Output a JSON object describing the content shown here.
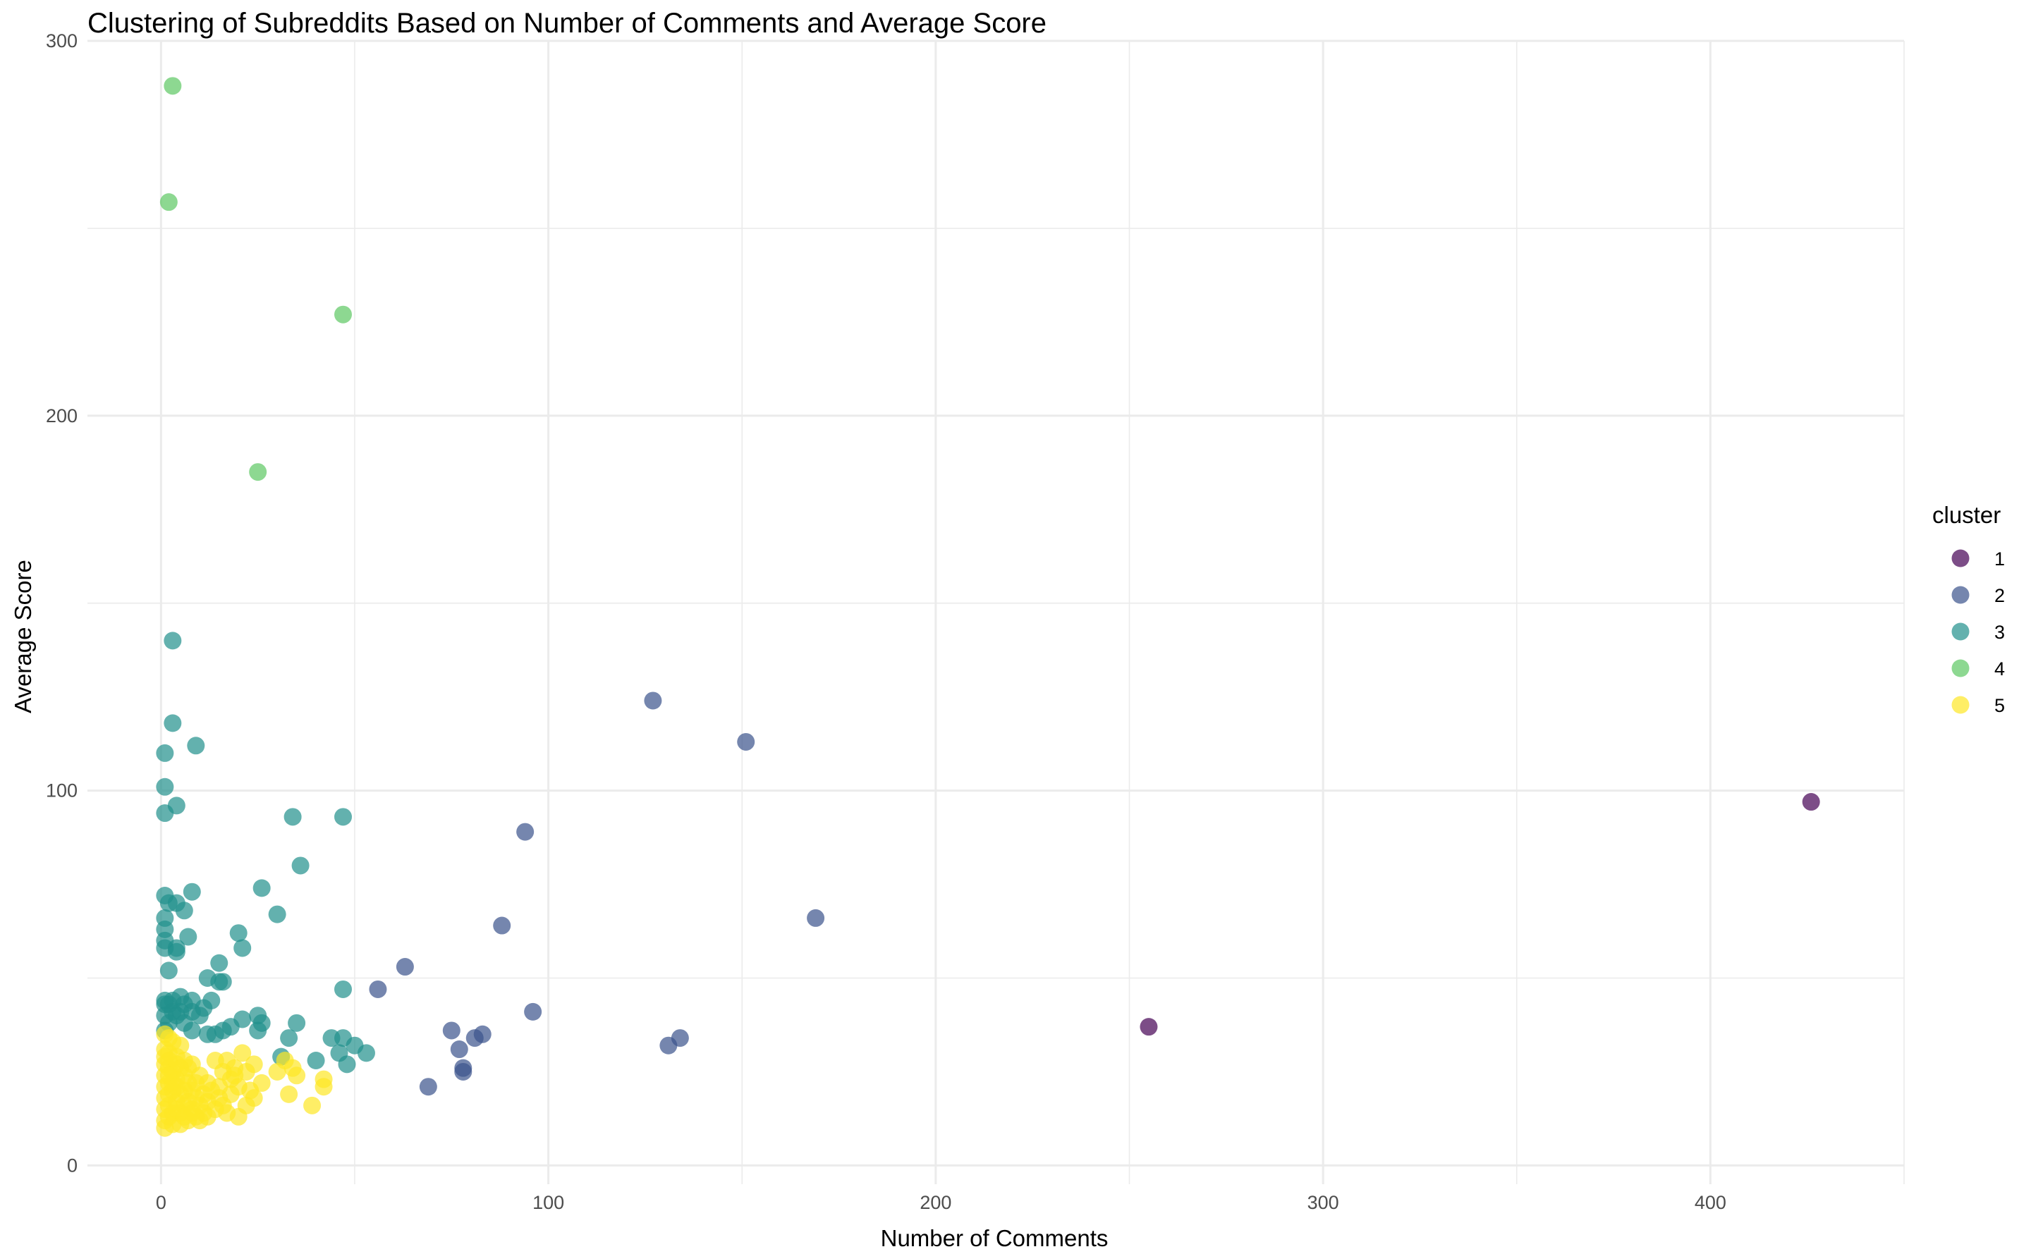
{
  "chart_data": {
    "type": "scatter",
    "title": "Clustering of Subreddits Based on Number of Comments and Average Score",
    "xlabel": "Number of Comments",
    "ylabel": "Average Score",
    "xlim": [
      -19,
      450
    ],
    "ylim": [
      -5,
      300
    ],
    "x_ticks": [
      0,
      100,
      200,
      300,
      400
    ],
    "y_ticks": [
      0,
      100,
      200,
      300
    ],
    "grid": true,
    "legend": {
      "title": "cluster",
      "position": "right"
    },
    "point_opacity": 0.7,
    "series": [
      {
        "name": "1",
        "color": "#440154",
        "points": [
          [
            426,
            97
          ],
          [
            255,
            37
          ]
        ]
      },
      {
        "name": "2",
        "color": "#3B528B",
        "points": [
          [
            127,
            124
          ],
          [
            151,
            113
          ],
          [
            94,
            89
          ],
          [
            169,
            66
          ],
          [
            88,
            64
          ],
          [
            63,
            53
          ],
          [
            56,
            47
          ],
          [
            96,
            41
          ],
          [
            75,
            36
          ],
          [
            83,
            35
          ],
          [
            81,
            34
          ],
          [
            134,
            34
          ],
          [
            131,
            32
          ],
          [
            77,
            31
          ],
          [
            78,
            26
          ],
          [
            78,
            25
          ],
          [
            69,
            21
          ]
        ]
      },
      {
        "name": "3",
        "color": "#21908C",
        "points": [
          [
            3,
            140
          ],
          [
            3,
            118
          ],
          [
            9,
            112
          ],
          [
            1,
            110
          ],
          [
            1,
            101
          ],
          [
            4,
            96
          ],
          [
            1,
            94
          ],
          [
            34,
            93
          ],
          [
            47,
            93
          ],
          [
            36,
            80
          ],
          [
            26,
            74
          ],
          [
            8,
            73
          ],
          [
            1,
            72
          ],
          [
            2,
            70
          ],
          [
            4,
            70
          ],
          [
            6,
            68
          ],
          [
            30,
            67
          ],
          [
            1,
            66
          ],
          [
            1,
            63
          ],
          [
            20,
            62
          ],
          [
            7,
            61
          ],
          [
            1,
            60
          ],
          [
            1,
            58
          ],
          [
            4,
            58
          ],
          [
            4,
            57
          ],
          [
            21,
            58
          ],
          [
            15,
            54
          ],
          [
            2,
            52
          ],
          [
            12,
            50
          ],
          [
            15,
            49
          ],
          [
            16,
            49
          ],
          [
            47,
            47
          ],
          [
            5,
            45
          ],
          [
            1,
            44
          ],
          [
            3,
            44
          ],
          [
            8,
            44
          ],
          [
            13,
            44
          ],
          [
            1,
            43
          ],
          [
            2,
            43
          ],
          [
            6,
            43
          ],
          [
            11,
            42
          ],
          [
            3,
            41
          ],
          [
            5,
            41
          ],
          [
            8,
            41
          ],
          [
            25,
            40
          ],
          [
            1,
            40
          ],
          [
            4,
            40
          ],
          [
            10,
            40
          ],
          [
            21,
            39
          ],
          [
            26,
            38
          ],
          [
            35,
            38
          ],
          [
            2,
            38
          ],
          [
            6,
            38
          ],
          [
            18,
            37
          ],
          [
            16,
            36
          ],
          [
            25,
            36
          ],
          [
            8,
            36
          ],
          [
            12,
            35
          ],
          [
            14,
            35
          ],
          [
            1,
            36
          ],
          [
            47,
            34
          ],
          [
            44,
            34
          ],
          [
            33,
            34
          ],
          [
            50,
            32
          ],
          [
            46,
            30
          ],
          [
            53,
            30
          ],
          [
            31,
            29
          ],
          [
            40,
            28
          ],
          [
            48,
            27
          ]
        ]
      },
      {
        "name": "4",
        "color": "#5DC863",
        "points": [
          [
            3,
            288
          ],
          [
            2,
            257
          ],
          [
            47,
            227
          ],
          [
            25,
            185
          ]
        ]
      },
      {
        "name": "5",
        "color": "#FDE725",
        "points": [
          [
            21,
            30
          ],
          [
            5,
            32
          ],
          [
            3,
            33
          ],
          [
            1,
            35
          ],
          [
            2,
            34
          ],
          [
            1,
            31
          ],
          [
            2,
            30
          ],
          [
            4,
            29
          ],
          [
            6,
            28
          ],
          [
            8,
            27
          ],
          [
            14,
            28
          ],
          [
            17,
            28
          ],
          [
            19,
            26
          ],
          [
            24,
            27
          ],
          [
            32,
            28
          ],
          [
            34,
            26
          ],
          [
            30,
            25
          ],
          [
            35,
            24
          ],
          [
            42,
            23
          ],
          [
            42,
            21
          ],
          [
            33,
            19
          ],
          [
            39,
            16
          ],
          [
            20,
            13
          ],
          [
            23,
            20
          ],
          [
            24,
            18
          ],
          [
            22,
            25
          ],
          [
            10,
            24
          ],
          [
            12,
            22
          ],
          [
            13,
            20
          ],
          [
            15,
            18
          ],
          [
            16,
            16
          ],
          [
            11,
            14
          ],
          [
            9,
            13
          ],
          [
            7,
            12
          ],
          [
            5,
            11
          ],
          [
            3,
            11
          ],
          [
            1,
            10
          ],
          [
            1,
            12
          ],
          [
            2,
            13
          ],
          [
            3,
            14
          ],
          [
            1,
            15
          ],
          [
            2,
            16
          ],
          [
            4,
            17
          ],
          [
            1,
            18
          ],
          [
            2,
            19
          ],
          [
            3,
            20
          ],
          [
            1,
            21
          ],
          [
            2,
            22
          ],
          [
            4,
            23
          ],
          [
            1,
            24
          ],
          [
            3,
            25
          ],
          [
            2,
            26
          ],
          [
            1,
            27
          ],
          [
            5,
            26
          ],
          [
            6,
            24
          ],
          [
            7,
            22
          ],
          [
            8,
            20
          ],
          [
            9,
            18
          ],
          [
            6,
            16
          ],
          [
            5,
            14
          ],
          [
            4,
            15
          ],
          [
            8,
            15
          ],
          [
            10,
            16
          ],
          [
            12,
            17
          ],
          [
            14,
            15
          ],
          [
            17,
            14
          ],
          [
            18,
            19
          ],
          [
            20,
            21
          ],
          [
            18,
            23
          ],
          [
            16,
            25
          ],
          [
            15,
            21
          ],
          [
            11,
            19
          ],
          [
            9,
            22
          ],
          [
            7,
            26
          ],
          [
            4,
            27
          ],
          [
            2,
            28
          ],
          [
            1,
            29
          ],
          [
            6,
            20
          ],
          [
            3,
            22
          ],
          [
            5,
            19
          ],
          [
            7,
            17
          ],
          [
            2,
            24
          ],
          [
            4,
            21
          ],
          [
            6,
            13
          ],
          [
            8,
            14
          ],
          [
            10,
            12
          ],
          [
            12,
            13
          ],
          [
            26,
            22
          ],
          [
            22,
            16
          ],
          [
            19,
            24
          ]
        ]
      }
    ]
  }
}
